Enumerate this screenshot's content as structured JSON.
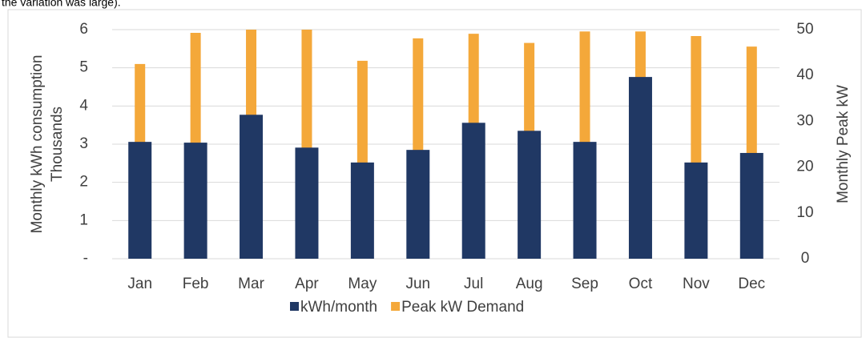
{
  "caption": "the variation was large).",
  "chart_data": {
    "type": "bar",
    "y_label": [
      "Monthly kWh consumption",
      "Thousands"
    ],
    "y2_label": "Monthly Peak kW",
    "categories": [
      "Jan",
      "Feb",
      "Mar",
      "Apr",
      "May",
      "Jun",
      "Jul",
      "Aug",
      "Sep",
      "Oct",
      "Nov",
      "Dec"
    ],
    "series": [
      {
        "name": "kWh/month",
        "color": "#203864",
        "values": [
          3.06,
          3.04,
          3.77,
          2.91,
          2.52,
          2.85,
          3.56,
          3.35,
          3.06,
          4.76,
          2.52,
          2.77
        ]
      },
      {
        "name": "Peak kW Demand",
        "color": "#f4a83a",
        "axis": "y2",
        "values": [
          42.5,
          49.3,
          50,
          50,
          43.2,
          48.1,
          49.1,
          47.1,
          49.6,
          49.6,
          48.6,
          46.3
        ]
      }
    ],
    "ylim": [
      0,
      6
    ],
    "yticks": [
      {
        "value": 0,
        "label": "-"
      },
      1,
      2,
      3,
      4,
      5,
      6
    ],
    "y2lim": [
      0,
      50
    ],
    "y2ticks": [
      0,
      10,
      20,
      30,
      40,
      50
    ],
    "grid": true,
    "legend": "bottom"
  }
}
